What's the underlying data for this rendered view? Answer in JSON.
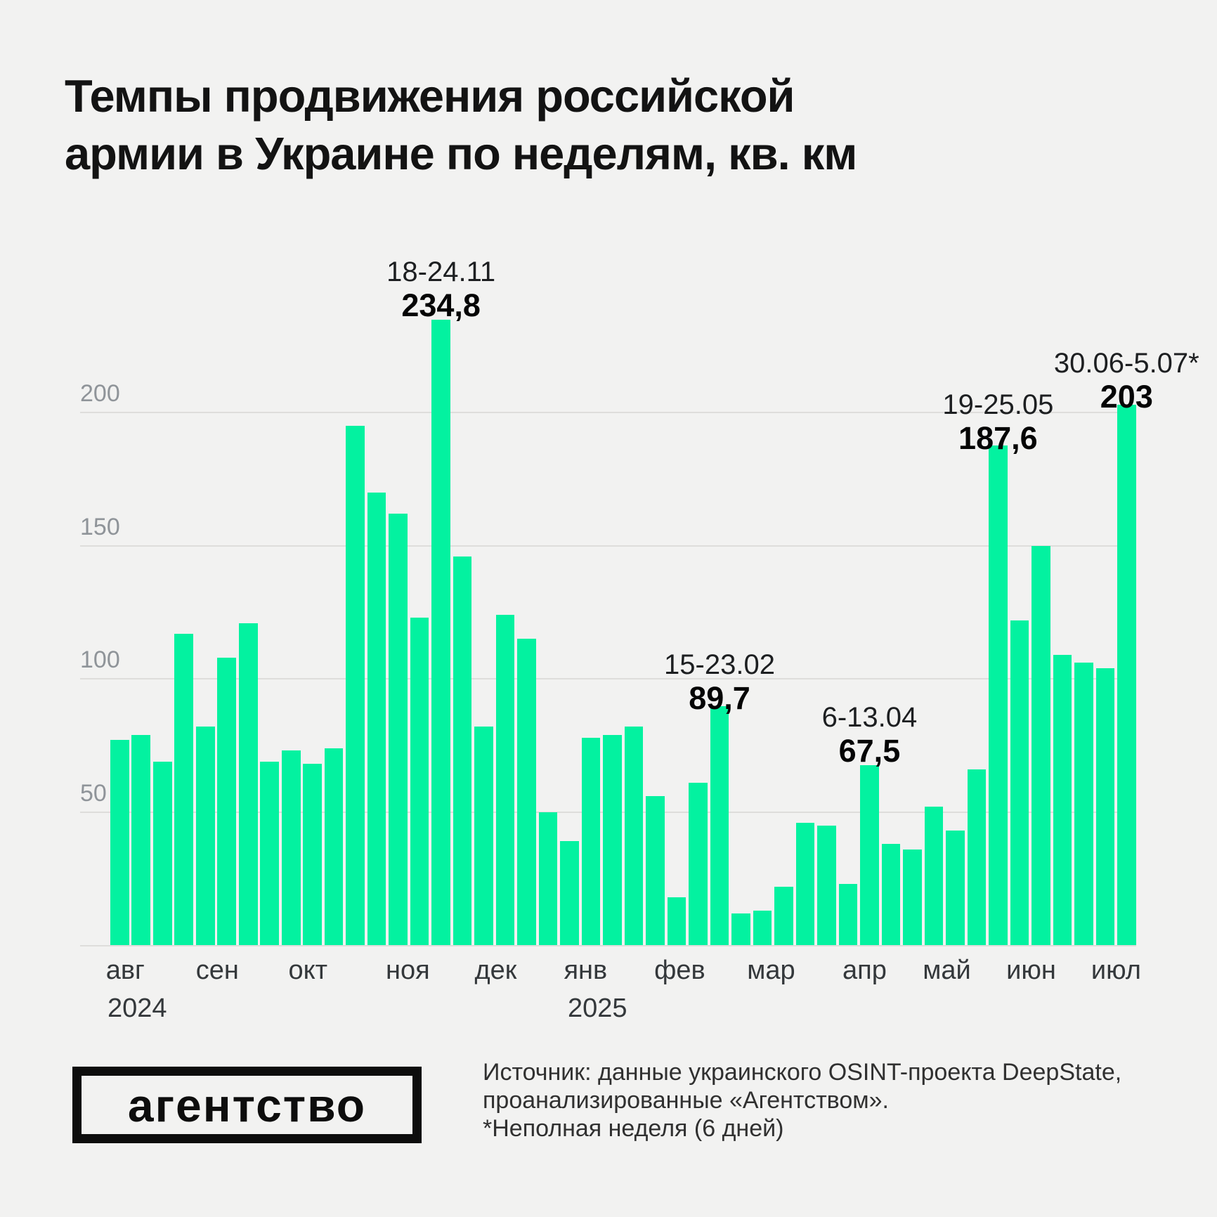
{
  "title": {
    "line1": "Темпы продвижения российской",
    "line2": "армии в Украине по неделям, кв. км"
  },
  "chart_data": {
    "type": "bar",
    "title": "Темпы продвижения российской армии в Украине по неделям, кв. км",
    "unit": "кв. км",
    "ylim": [
      0,
      240
    ],
    "yticks": [
      50,
      100,
      150,
      200
    ],
    "grid": true,
    "values": [
      77,
      79,
      69,
      117,
      82,
      108,
      121,
      69,
      73,
      68,
      74,
      195,
      170,
      162,
      123,
      234.8,
      146,
      82,
      124,
      115,
      50,
      39,
      78,
      79,
      82,
      56,
      18,
      61,
      89.7,
      12,
      13,
      22,
      46,
      45,
      23,
      67.5,
      38,
      36,
      52,
      43,
      66,
      187.6,
      122,
      150,
      109,
      106,
      104,
      203
    ],
    "month_ticks": [
      "авг",
      "сен",
      "окт",
      "ноя",
      "дек",
      "янв",
      "фев",
      "мар",
      "апр",
      "май",
      "июн",
      "июл"
    ],
    "year_ticks": [
      "2024",
      "2025"
    ],
    "annotations": [
      {
        "date": "18-24.11",
        "value": "234,8",
        "bar_index": 15
      },
      {
        "date": "15-23.02",
        "value": "89,7",
        "bar_index": 28
      },
      {
        "date": "6-13.04",
        "value": "67,5",
        "bar_index": 35
      },
      {
        "date": "19-25.05",
        "value": "187,6",
        "bar_index": 41
      },
      {
        "date": "30.06-5.07*",
        "value": "203",
        "bar_index": 47
      }
    ]
  },
  "footer": {
    "logo_text": "агентство",
    "source_line1": "Источник: данные украинского OSINT-проекта DeepState,",
    "source_line2": "проанализированные «Агентством».",
    "source_line3": "*Неполная неделя (6 дней)"
  },
  "colors": {
    "background": "#F2F2F1",
    "bar_green": "#03F2A0",
    "gridline": "#DEDDDB",
    "axis_gray": "#8F9499",
    "axis_dark": "#34383B",
    "title_black": "#131313",
    "annotation_date": "#1D1F21",
    "annotation_value": "#050505",
    "logo_black": "#0D0D0D",
    "source_text": "#303030"
  }
}
